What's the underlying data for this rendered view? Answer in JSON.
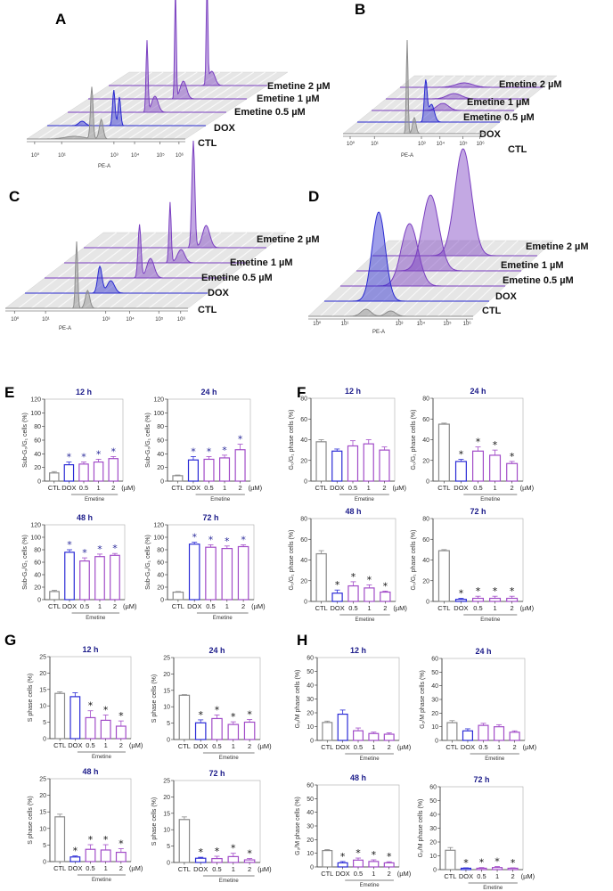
{
  "panel_letters": [
    "A",
    "B",
    "C",
    "D",
    "E",
    "F",
    "G",
    "H"
  ],
  "histograms": {
    "row_labels": [
      "CTL",
      "DOX",
      "Emetine 0.5 µM",
      "Emetine 1 µM",
      "Emetine 2 µM"
    ],
    "x_axis_label": "PE-A",
    "x_ticks": [
      "10⁰",
      "10¹",
      "10³",
      "10⁴",
      "10⁵",
      "10⁶"
    ],
    "colors": {
      "CTL": "#8c8c8c",
      "DOX": "#2a2ad0",
      "Emetine": "#7a3fc0"
    }
  },
  "colors": {
    "CTL": "#8a8a8a",
    "DOX": "#2b2bd6",
    "Emetine": "#a24cc8",
    "title": "#1c1c8a",
    "star_E": "#2a2a9a",
    "star": "#111111"
  },
  "chart_data": [
    {
      "panel": "E",
      "type": "bar",
      "title": "12 h",
      "ylabel": "Sub-G₀/G₁ cells (%)",
      "ylim": [
        0,
        120
      ],
      "yticks": [
        "0",
        "20",
        "40",
        "60",
        "80",
        "100",
        "120"
      ],
      "categories": [
        "CTL",
        "DOX",
        "0.5",
        "1",
        "2"
      ],
      "unit": "(µM)",
      "group_label": "Emetine",
      "values": [
        12,
        24,
        25,
        28,
        33
      ],
      "errors": [
        2,
        4,
        3,
        4,
        3
      ],
      "significant": [
        false,
        true,
        true,
        true,
        true
      ]
    },
    {
      "panel": "E",
      "type": "bar",
      "title": "24 h",
      "ylabel": "Sub-G₀/G₁ cells (%)",
      "ylim": [
        0,
        120
      ],
      "yticks": [
        "0",
        "20",
        "40",
        "60",
        "80",
        "100",
        "120"
      ],
      "categories": [
        "CTL",
        "DOX",
        "0.5",
        "1",
        "2"
      ],
      "unit": "(µM)",
      "group_label": "Emetine",
      "values": [
        8,
        31,
        32,
        34,
        46
      ],
      "errors": [
        1,
        5,
        4,
        4,
        8
      ],
      "significant": [
        false,
        true,
        true,
        true,
        true
      ]
    },
    {
      "panel": "E",
      "type": "bar",
      "title": "48 h",
      "ylabel": "Sub-G₀/G₁ cells (%)",
      "ylim": [
        0,
        120
      ],
      "yticks": [
        "0",
        "20",
        "40",
        "60",
        "80",
        "100",
        "120"
      ],
      "categories": [
        "CTL",
        "DOX",
        "0.5",
        "1",
        "2"
      ],
      "unit": "(µM)",
      "group_label": "Emetine",
      "values": [
        13,
        76,
        62,
        69,
        71
      ],
      "errors": [
        2,
        4,
        5,
        4,
        3
      ],
      "significant": [
        false,
        true,
        true,
        true,
        true
      ]
    },
    {
      "panel": "E",
      "type": "bar",
      "title": "72 h",
      "ylabel": "Sub-G₀/G₁ cells (%)",
      "ylim": [
        0,
        120
      ],
      "yticks": [
        "0",
        "20",
        "40",
        "60",
        "80",
        "100",
        "120"
      ],
      "categories": [
        "CTL",
        "DOX",
        "0.5",
        "1",
        "2"
      ],
      "unit": "(µM)",
      "group_label": "Emetine",
      "values": [
        12,
        89,
        84,
        82,
        85
      ],
      "errors": [
        1,
        3,
        4,
        4,
        3
      ],
      "significant": [
        false,
        true,
        true,
        true,
        true
      ]
    },
    {
      "panel": "F",
      "type": "bar",
      "title": "12 h",
      "ylabel": "G₀/G₁ phase cells (%)",
      "ylim": [
        0,
        80
      ],
      "yticks": [
        "0",
        "20",
        "40",
        "60",
        "80"
      ],
      "categories": [
        "CTL",
        "DOX",
        "0.5",
        "1",
        "2"
      ],
      "unit": "(µM)",
      "group_label": "Emetine",
      "values": [
        38,
        29,
        34,
        36,
        30
      ],
      "errors": [
        2,
        2,
        5,
        4,
        3
      ],
      "significant": [
        false,
        false,
        false,
        false,
        false
      ]
    },
    {
      "panel": "F",
      "type": "bar",
      "title": "24 h",
      "ylabel": "G₀/G₁ phase cells (%)",
      "ylim": [
        0,
        80
      ],
      "yticks": [
        "0",
        "20",
        "40",
        "60",
        "80"
      ],
      "categories": [
        "CTL",
        "DOX",
        "0.5",
        "1",
        "2"
      ],
      "unit": "(µM)",
      "group_label": "Emetine",
      "values": [
        55,
        19,
        29,
        25,
        17
      ],
      "errors": [
        1,
        2,
        4,
        5,
        2
      ],
      "significant": [
        false,
        true,
        true,
        true,
        true
      ]
    },
    {
      "panel": "F",
      "type": "bar",
      "title": "48 h",
      "ylabel": "G₀/G₁ phase cells (%)",
      "ylim": [
        0,
        80
      ],
      "yticks": [
        "0",
        "20",
        "40",
        "60",
        "80"
      ],
      "categories": [
        "CTL",
        "DOX",
        "0.5",
        "1",
        "2"
      ],
      "unit": "(µM)",
      "group_label": "Emetine",
      "values": [
        46,
        8,
        15,
        13,
        9
      ],
      "errors": [
        3,
        3,
        4,
        3,
        1
      ],
      "significant": [
        false,
        true,
        true,
        true,
        true
      ]
    },
    {
      "panel": "F",
      "type": "bar",
      "title": "72 h",
      "ylabel": "G₀/G₁ phase cells (%)",
      "ylim": [
        0,
        80
      ],
      "yticks": [
        "0",
        "20",
        "40",
        "60",
        "80"
      ],
      "categories": [
        "CTL",
        "DOX",
        "0.5",
        "1",
        "2"
      ],
      "unit": "(µM)",
      "group_label": "Emetine",
      "values": [
        49,
        2,
        3,
        3,
        3
      ],
      "errors": [
        1,
        1,
        2,
        2,
        2
      ],
      "significant": [
        false,
        true,
        true,
        true,
        true
      ]
    },
    {
      "panel": "G",
      "type": "bar",
      "title": "12 h",
      "ylabel": "S phase cells (%)",
      "ylim": [
        0,
        25
      ],
      "yticks": [
        "0",
        "5",
        "10",
        "15",
        "20",
        "25"
      ],
      "categories": [
        "CTL",
        "DOX",
        "0.5",
        "1",
        "2"
      ],
      "unit": "(µM)",
      "group_label": "Emetine",
      "values": [
        13.8,
        12.8,
        6.4,
        5.6,
        3.8
      ],
      "errors": [
        0.5,
        1.2,
        2.1,
        1.6,
        1.6
      ],
      "significant": [
        false,
        false,
        true,
        true,
        true
      ]
    },
    {
      "panel": "G",
      "type": "bar",
      "title": "24 h",
      "ylabel": "S phase cells (%)",
      "ylim": [
        0,
        25
      ],
      "yticks": [
        "0",
        "5",
        "10",
        "15",
        "20",
        "25"
      ],
      "categories": [
        "CTL",
        "DOX",
        "0.5",
        "1",
        "2"
      ],
      "unit": "(µM)",
      "group_label": "Emetine",
      "values": [
        13.5,
        5.1,
        6.4,
        4.6,
        5.3
      ],
      "errors": [
        0.2,
        0.9,
        1.1,
        0.8,
        0.8
      ],
      "significant": [
        false,
        true,
        true,
        true,
        true
      ]
    },
    {
      "panel": "G",
      "type": "bar",
      "title": "48 h",
      "ylabel": "S phase cells (%)",
      "ylim": [
        0,
        25
      ],
      "yticks": [
        "0",
        "5",
        "10",
        "15",
        "20",
        "25"
      ],
      "categories": [
        "CTL",
        "DOX",
        "0.5",
        "1",
        "2"
      ],
      "unit": "(µM)",
      "group_label": "Emetine",
      "values": [
        13.5,
        1.4,
        3.7,
        3.5,
        2.8
      ],
      "errors": [
        0.8,
        0.3,
        1.4,
        1.6,
        1.1
      ],
      "significant": [
        false,
        true,
        true,
        true,
        true
      ]
    },
    {
      "panel": "G",
      "type": "bar",
      "title": "72 h",
      "ylabel": "S phase cells (%)",
      "ylim": [
        0,
        25
      ],
      "yticks": [
        "0",
        "5",
        "10",
        "15",
        "20",
        "25"
      ],
      "categories": [
        "CTL",
        "DOX",
        "0.5",
        "1",
        "2"
      ],
      "unit": "(µM)",
      "group_label": "Emetine",
      "values": [
        13.1,
        1.3,
        1.2,
        1.8,
        0.8
      ],
      "errors": [
        0.8,
        0.3,
        0.7,
        1.0,
        0.4
      ],
      "significant": [
        false,
        true,
        true,
        true,
        true
      ]
    },
    {
      "panel": "H",
      "type": "bar",
      "title": "12 h",
      "ylabel": "G₂/M phase cells (%)",
      "ylim": [
        0,
        60
      ],
      "yticks": [
        "0",
        "10",
        "20",
        "30",
        "40",
        "50",
        "60"
      ],
      "categories": [
        "CTL",
        "DOX",
        "0.5",
        "1",
        "2"
      ],
      "unit": "(µM)",
      "group_label": "Emetine",
      "values": [
        13,
        19,
        7,
        5,
        4.5
      ],
      "errors": [
        1,
        3,
        2,
        1,
        1
      ],
      "significant": [
        false,
        false,
        false,
        false,
        false
      ]
    },
    {
      "panel": "H",
      "type": "bar",
      "title": "24 h",
      "ylabel": "G₂/M phase cells (%)",
      "ylim": [
        0,
        60
      ],
      "yticks": [
        "0",
        "10",
        "20",
        "30",
        "40",
        "50",
        "60"
      ],
      "categories": [
        "CTL",
        "DOX",
        "0.5",
        "1",
        "2"
      ],
      "unit": "(µM)",
      "group_label": "Emetine",
      "values": [
        13,
        7,
        11,
        10,
        6
      ],
      "errors": [
        1.5,
        1.5,
        1.5,
        1.5,
        1
      ],
      "significant": [
        false,
        false,
        false,
        false,
        false
      ]
    },
    {
      "panel": "H",
      "type": "bar",
      "title": "48 h",
      "ylabel": "G₂/M phase cells (%)",
      "ylim": [
        0,
        60
      ],
      "yticks": [
        "0",
        "10",
        "20",
        "30",
        "40",
        "50",
        "60"
      ],
      "categories": [
        "CTL",
        "DOX",
        "0.5",
        "1",
        "2"
      ],
      "unit": "(µM)",
      "group_label": "Emetine",
      "values": [
        12,
        3,
        5,
        4,
        3
      ],
      "errors": [
        0.7,
        1,
        1.5,
        1.2,
        0.8
      ],
      "significant": [
        false,
        true,
        true,
        true,
        true
      ]
    },
    {
      "panel": "H",
      "type": "bar",
      "title": "72 h",
      "ylabel": "G₂/M phase cells (%)",
      "ylim": [
        0,
        60
      ],
      "yticks": [
        "0",
        "10",
        "20",
        "30",
        "40",
        "50",
        "60"
      ],
      "categories": [
        "CTL",
        "DOX",
        "0.5",
        "1",
        "2"
      ],
      "unit": "(µM)",
      "group_label": "Emetine",
      "values": [
        14,
        1,
        1,
        1.5,
        1
      ],
      "errors": [
        2,
        0.3,
        0.5,
        0.7,
        0.3
      ],
      "significant": [
        false,
        true,
        true,
        true,
        true
      ]
    }
  ]
}
